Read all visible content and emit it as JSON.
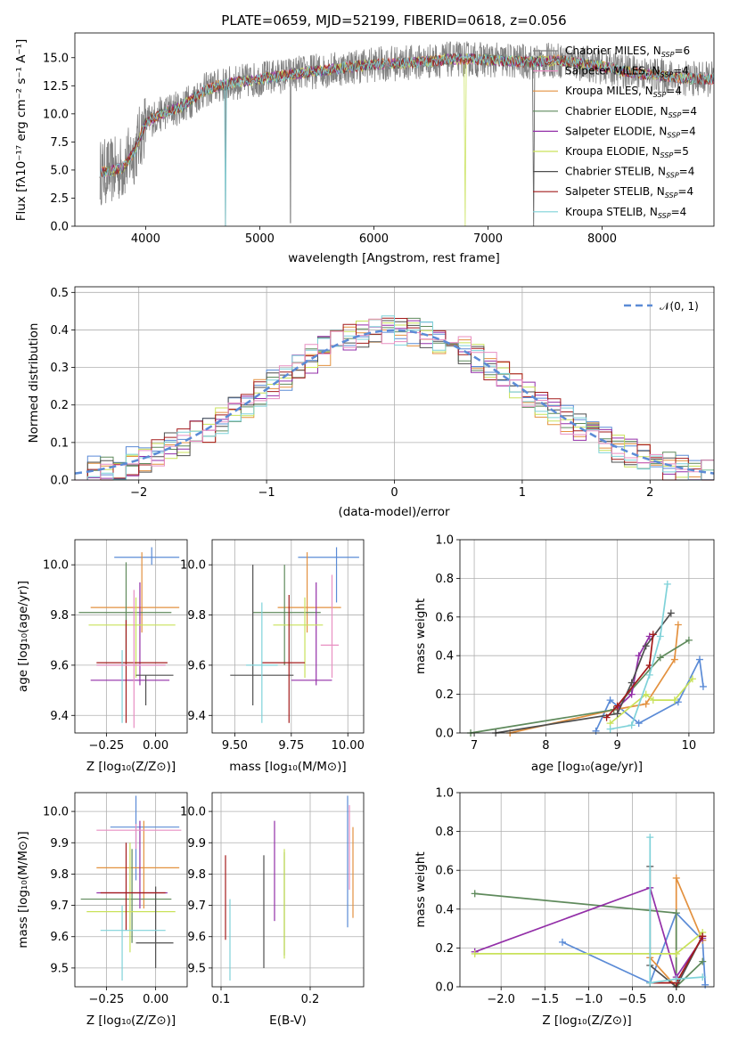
{
  "colors": [
    "#5b8bd6",
    "#e3913f",
    "#5f8a5c",
    "#932fa8",
    "#c9e25a",
    "#4f4f4f",
    "#a31b1b",
    "#7fd2d9",
    "#e88fc2",
    "#7d7d7d"
  ],
  "chart_data": [
    {
      "type": "line",
      "title": "PLATE=0659, MJD=52199, FIBERID=0618, z=0.056",
      "xlabel": "wavelength [Angstrom, rest frame]",
      "ylabel": "Flux [fλ10⁻¹⁷ erg cm⁻² s⁻¹ A⁻¹]",
      "xlim": [
        3380,
        8980
      ],
      "ylim": [
        0,
        17.2
      ],
      "xticks": [
        "4000",
        "5000",
        "6000",
        "7000",
        "8000"
      ],
      "yticks": [
        "0.0",
        "2.5",
        "5.0",
        "7.5",
        "10.0",
        "12.5",
        "15.0"
      ],
      "legend_position": "upper right",
      "continuum": {
        "x": [
          3600,
          3700,
          3800,
          3900,
          4000,
          4100,
          4200,
          4300,
          4400,
          4500,
          4600,
          4800,
          5000,
          5200,
          5400,
          5600,
          5800,
          6000,
          6200,
          6400,
          6600,
          6800,
          7000,
          7200,
          7400,
          7600,
          7800,
          8000,
          8200,
          8400,
          8600,
          8800
        ],
        "y": [
          4.8,
          4.9,
          5.2,
          6.6,
          9.2,
          9.8,
          10.3,
          10.6,
          11.2,
          12.0,
          12.4,
          12.8,
          13.1,
          13.4,
          13.7,
          13.9,
          14.2,
          14.4,
          14.5,
          14.6,
          14.8,
          14.9,
          14.8,
          14.7,
          14.6,
          14.8,
          14.5,
          14.2,
          13.8,
          13.5,
          13.3,
          13.1
        ]
      },
      "series": [
        {
          "name": "Chabrier MILES, N_SSP=6"
        },
        {
          "name": "Salpeter MILES, N_SSP=4"
        },
        {
          "name": "Kroupa MILES, N_SSP=4"
        },
        {
          "name": "Chabrier ELODIE, N_SSP=4"
        },
        {
          "name": "Salpeter ELODIE, N_SSP=4"
        },
        {
          "name": "Kroupa ELODIE, N_SSP=5"
        },
        {
          "name": "Chabrier STELIB, N_SSP=4"
        },
        {
          "name": "Salpeter STELIB, N_SSP=4"
        },
        {
          "name": "Kroupa STELIB, N_SSP=4"
        }
      ],
      "legend_labels": [
        "Chabrier MILES, N",
        "Salpeter MILES, N",
        "Kroupa MILES, N",
        "Chabrier ELODIE, N",
        "Salpeter ELODIE, N",
        "Kroupa ELODIE, N",
        "Chabrier STELIB, N",
        "Salpeter STELIB, N",
        "Kroupa STELIB, N"
      ],
      "legend_sub": "SSP",
      "legend_counts": [
        "=6",
        "=4",
        "=4",
        "=4",
        "=4",
        "=5",
        "=4",
        "=4",
        "=4"
      ]
    },
    {
      "type": "bar",
      "xlabel": "(data-model)/error",
      "ylabel": "Normed distribution",
      "xlim": [
        -2.5,
        2.5
      ],
      "ylim": [
        0,
        0.515
      ],
      "xticks": [
        "−2",
        "−1",
        "0",
        "1",
        "2"
      ],
      "yticks": [
        "0.0",
        "0.1",
        "0.2",
        "0.3",
        "0.4",
        "0.5"
      ],
      "legend_label": "𝒩(0, 1)",
      "legend_position": "upper right",
      "bin_edges": [
        -2.5,
        -2.4,
        -2.3,
        -2.2,
        -2.1,
        -2.0,
        -1.9,
        -1.8,
        -1.7,
        -1.6,
        -1.5,
        -1.4,
        -1.3,
        -1.2,
        -1.1,
        -1.0,
        -0.9,
        -0.8,
        -0.7,
        -0.6,
        -0.5,
        -0.4,
        -0.3,
        -0.2,
        -0.1,
        0.0,
        0.1,
        0.2,
        0.3,
        0.4,
        0.5,
        0.6,
        0.7,
        0.8,
        0.9,
        1.0,
        1.1,
        1.2,
        1.3,
        1.4,
        1.5,
        1.6,
        1.7,
        1.8,
        1.9,
        2.0,
        2.1,
        2.2,
        2.3,
        2.4,
        2.5
      ]
    },
    {
      "type": "scatter",
      "xlabel": "Z [log₁₀(Z/Z⊙)]",
      "ylabel": "age  [log₁₀(age/yr)]",
      "xlim": [
        -0.41,
        0.16
      ],
      "ylim": [
        9.33,
        10.1
      ],
      "xticks": [
        {
          "v": -0.25,
          "t": "−0.25"
        },
        {
          "v": 0.0,
          "t": "0.00"
        }
      ],
      "yticks": [
        {
          "v": 9.4,
          "t": "9.4"
        },
        {
          "v": 9.6,
          "t": "9.6"
        },
        {
          "v": 9.8,
          "t": "9.8"
        },
        {
          "v": 10.0,
          "t": "10.0"
        }
      ],
      "points": [
        {
          "x": -0.02,
          "y": 10.03,
          "xe": [
            -0.21,
            0.12
          ],
          "ye": [
            10.0,
            10.07
          ]
        },
        {
          "x": -0.07,
          "y": 9.83,
          "xe": [
            -0.33,
            0.12
          ],
          "ye": [
            9.73,
            10.05
          ]
        },
        {
          "x": -0.15,
          "y": 9.81,
          "xe": [
            -0.39,
            0.08
          ],
          "ye": [
            9.6,
            10.01
          ]
        },
        {
          "x": -0.08,
          "y": 9.54,
          "xe": [
            -0.33,
            0.07
          ],
          "ye": [
            9.52,
            9.93
          ]
        },
        {
          "x": -0.1,
          "y": 9.76,
          "xe": [
            -0.34,
            0.1
          ],
          "ye": [
            9.55,
            9.87
          ]
        },
        {
          "x": -0.05,
          "y": 9.56,
          "xe": [
            -0.1,
            0.09
          ],
          "ye": [
            9.44,
            9.56
          ]
        },
        {
          "x": -0.15,
          "y": 9.61,
          "xe": [
            -0.3,
            0.06
          ],
          "ye": [
            9.37,
            9.78
          ]
        },
        {
          "x": -0.17,
          "y": 9.6,
          "xe": [
            -0.3,
            0.05
          ],
          "ye": [
            9.37,
            9.66
          ]
        },
        {
          "x": -0.11,
          "y": 9.6,
          "xe": [
            -0.3,
            0.05
          ],
          "ye": [
            9.35,
            9.9
          ]
        }
      ]
    },
    {
      "type": "scatter",
      "xlabel": "mass [log₁₀(M/M⊙)]",
      "xlim": [
        9.4,
        10.07
      ],
      "ylim": [
        9.33,
        10.1
      ],
      "xticks": [
        {
          "v": 9.5,
          "t": "9.50"
        },
        {
          "v": 9.75,
          "t": "9.75"
        },
        {
          "v": 10.0,
          "t": "10.00"
        }
      ],
      "yticks": [
        {
          "v": 9.4,
          "t": "9.4"
        },
        {
          "v": 9.6,
          "t": "9.6"
        },
        {
          "v": 9.8,
          "t": "9.8"
        },
        {
          "v": 10.0,
          "t": "10.0"
        }
      ],
      "points": [
        {
          "x": 9.95,
          "y": 10.03,
          "xe": [
            9.78,
            10.05
          ],
          "ye": [
            9.85,
            10.07
          ]
        },
        {
          "x": 9.82,
          "y": 9.83,
          "xe": [
            9.69,
            9.97
          ],
          "ye": [
            9.73,
            10.05
          ]
        },
        {
          "x": 9.72,
          "y": 9.81,
          "xe": [
            9.58,
            9.88
          ],
          "ye": [
            9.6,
            10.0
          ]
        },
        {
          "x": 9.86,
          "y": 9.54,
          "xe": [
            9.75,
            9.93
          ],
          "ye": [
            9.52,
            9.93
          ]
        },
        {
          "x": 9.81,
          "y": 9.76,
          "xe": [
            9.67,
            9.89
          ],
          "ye": [
            9.55,
            9.87
          ]
        },
        {
          "x": 9.58,
          "y": 9.56,
          "xe": [
            9.48,
            9.76
          ],
          "ye": [
            9.44,
            10.0
          ]
        },
        {
          "x": 9.74,
          "y": 9.61,
          "xe": [
            9.62,
            9.81
          ],
          "ye": [
            9.37,
            9.88
          ]
        },
        {
          "x": 9.62,
          "y": 9.6,
          "xe": [
            9.55,
            9.69
          ],
          "ye": [
            9.37,
            9.85
          ]
        },
        {
          "x": 9.93,
          "y": 9.68,
          "xe": [
            9.88,
            9.96
          ],
          "ye": [
            9.55,
            9.96
          ]
        }
      ]
    },
    {
      "type": "line",
      "xlabel": "age  [log₁₀(age/yr)]",
      "ylabel": "mass weight",
      "xlim": [
        6.8,
        10.35
      ],
      "ylim": [
        0,
        1.0
      ],
      "xticks": [
        {
          "v": 7,
          "t": "7"
        },
        {
          "v": 8,
          "t": "8"
        },
        {
          "v": 9,
          "t": "9"
        },
        {
          "v": 10,
          "t": "10"
        }
      ],
      "yticks": [
        {
          "v": 0,
          "t": "0.0"
        },
        {
          "v": 0.2,
          "t": "0.2"
        },
        {
          "v": 0.4,
          "t": "0.4"
        },
        {
          "v": 0.6,
          "t": "0.6"
        },
        {
          "v": 0.8,
          "t": "0.8"
        },
        {
          "v": 1.0,
          "t": "1.0"
        }
      ],
      "series": [
        {
          "x": [
            8.7,
            8.9,
            9.3,
            9.85,
            10.15,
            10.2
          ],
          "y": [
            0.01,
            0.17,
            0.05,
            0.16,
            0.38,
            0.24
          ]
        },
        {
          "x": [
            7.5,
            8.95,
            9.4,
            9.8,
            9.85
          ],
          "y": [
            0.0,
            0.12,
            0.15,
            0.38,
            0.56
          ]
        },
        {
          "x": [
            6.95,
            8.95,
            9.6,
            10.0
          ],
          "y": [
            0.0,
            0.12,
            0.39,
            0.48
          ]
        },
        {
          "x": [
            9.0,
            9.2,
            9.3,
            9.45
          ],
          "y": [
            0.13,
            0.2,
            0.4,
            0.5
          ]
        },
        {
          "x": [
            8.9,
            9.4,
            9.5,
            9.8,
            10.05
          ],
          "y": [
            0.05,
            0.2,
            0.17,
            0.17,
            0.28
          ]
        },
        {
          "x": [
            7.3,
            9.0,
            9.2,
            9.4,
            9.75
          ],
          "y": [
            0.0,
            0.1,
            0.26,
            0.45,
            0.62
          ]
        },
        {
          "x": [
            8.85,
            9.0,
            9.45,
            9.5
          ],
          "y": [
            0.08,
            0.14,
            0.35,
            0.51
          ]
        },
        {
          "x": [
            8.9,
            9.2,
            9.45,
            9.6,
            9.7
          ],
          "y": [
            0.02,
            0.04,
            0.3,
            0.5,
            0.77
          ]
        }
      ]
    },
    {
      "type": "scatter",
      "xlabel": "Z [log₁₀(Z/Z⊙)]",
      "ylabel": "mass [log₁₀(M/M⊙)]",
      "xlim": [
        -0.41,
        0.16
      ],
      "ylim": [
        9.44,
        10.06
      ],
      "xticks": [
        {
          "v": -0.25,
          "t": "−0.25"
        },
        {
          "v": 0.0,
          "t": "0.00"
        }
      ],
      "yticks": [
        {
          "v": 9.5,
          "t": "9.5"
        },
        {
          "v": 9.6,
          "t": "9.6"
        },
        {
          "v": 9.7,
          "t": "9.7"
        },
        {
          "v": 9.8,
          "t": "9.8"
        },
        {
          "v": 9.9,
          "t": "9.9"
        },
        {
          "v": 10.0,
          "t": "10.0"
        }
      ],
      "points": [
        {
          "x": -0.1,
          "y": 9.95,
          "xe": [
            -0.23,
            0.12
          ],
          "ye": [
            9.78,
            10.05
          ]
        },
        {
          "x": -0.06,
          "y": 9.82,
          "xe": [
            -0.3,
            0.12
          ],
          "ye": [
            9.69,
            9.97
          ]
        },
        {
          "x": -0.12,
          "y": 9.72,
          "xe": [
            -0.38,
            0.08
          ],
          "ye": [
            9.58,
            9.88
          ]
        },
        {
          "x": -0.08,
          "y": 9.74,
          "xe": [
            -0.3,
            0.06
          ],
          "ye": [
            9.69,
            9.97
          ]
        },
        {
          "x": -0.13,
          "y": 9.68,
          "xe": [
            -0.35,
            0.1
          ],
          "ye": [
            9.55,
            9.9
          ]
        },
        {
          "x": 0.0,
          "y": 9.58,
          "xe": [
            -0.1,
            0.09
          ],
          "ye": [
            9.5,
            9.76
          ]
        },
        {
          "x": -0.15,
          "y": 9.74,
          "xe": [
            -0.28,
            0.05
          ],
          "ye": [
            9.62,
            9.9
          ]
        },
        {
          "x": -0.17,
          "y": 9.62,
          "xe": [
            -0.28,
            0.05
          ],
          "ye": [
            9.46,
            9.7
          ]
        },
        {
          "x": -0.1,
          "y": 9.94,
          "xe": [
            -0.3,
            0.13
          ],
          "ye": [
            9.88,
            9.96
          ]
        }
      ]
    },
    {
      "type": "scatter",
      "xlabel": "E(B-V)",
      "xlim": [
        0.09,
        0.26
      ],
      "ylim": [
        9.44,
        10.06
      ],
      "xticks": [
        {
          "v": 0.1,
          "t": "0.1"
        },
        {
          "v": 0.2,
          "t": "0.2"
        }
      ],
      "yticks": [
        {
          "v": 9.5,
          "t": "9.5"
        },
        {
          "v": 9.6,
          "t": "9.6"
        },
        {
          "v": 9.7,
          "t": "9.7"
        },
        {
          "v": 9.8,
          "t": "9.8"
        },
        {
          "v": 9.9,
          "t": "9.9"
        },
        {
          "v": 10.0,
          "t": "10.0"
        }
      ],
      "points": [
        {
          "x": 0.242,
          "y": 9.95,
          "ye": [
            9.63,
            10.05
          ]
        },
        {
          "x": 0.248,
          "y": 9.82,
          "ye": [
            9.66,
            9.95
          ]
        },
        {
          "x": 0.171,
          "y": 9.76,
          "ye": [
            9.54,
            9.87
          ]
        },
        {
          "x": 0.16,
          "y": 9.82,
          "ye": [
            9.65,
            9.97
          ]
        },
        {
          "x": 0.171,
          "y": 9.7,
          "ye": [
            9.53,
            9.88
          ]
        },
        {
          "x": 0.148,
          "y": 9.68,
          "ye": [
            9.5,
            9.86
          ]
        },
        {
          "x": 0.105,
          "y": 9.75,
          "ye": [
            9.59,
            9.86
          ]
        },
        {
          "x": 0.11,
          "y": 9.58,
          "ye": [
            9.46,
            9.72
          ]
        },
        {
          "x": 0.244,
          "y": 9.85,
          "ye": [
            9.75,
            10.02
          ]
        }
      ]
    },
    {
      "type": "line",
      "xlabel": "Z [log₁₀(Z/Z⊙)]",
      "ylabel": "mass weight",
      "xlim": [
        -2.47,
        0.43
      ],
      "ylim": [
        0,
        1.0
      ],
      "xticks": [
        {
          "v": -2.0,
          "t": "−2.0"
        },
        {
          "v": -1.5,
          "t": "−1.5"
        },
        {
          "v": -1.0,
          "t": "−1.0"
        },
        {
          "v": -0.5,
          "t": "−0.5"
        },
        {
          "v": 0.0,
          "t": "0.0"
        }
      ],
      "yticks": [
        {
          "v": 0,
          "t": "0.0"
        },
        {
          "v": 0.2,
          "t": "0.2"
        },
        {
          "v": 0.4,
          "t": "0.4"
        },
        {
          "v": 0.6,
          "t": "0.6"
        },
        {
          "v": 0.8,
          "t": "0.8"
        },
        {
          "v": 1.0,
          "t": "1.0"
        }
      ],
      "series": [
        {
          "x": [
            -1.3,
            -0.3,
            0.0,
            0.3,
            0.33
          ],
          "y": [
            0.23,
            0.02,
            0.38,
            0.24,
            0.01
          ]
        },
        {
          "x": [
            -0.3,
            0.0,
            0.0,
            0.3
          ],
          "y": [
            0.15,
            0.0,
            0.56,
            0.24
          ]
        },
        {
          "x": [
            -2.3,
            0.0,
            0.0,
            0.3
          ],
          "y": [
            0.48,
            0.38,
            0.0,
            0.13
          ]
        },
        {
          "x": [
            -2.3,
            -0.3,
            0.0,
            0.3
          ],
          "y": [
            0.18,
            0.51,
            0.05,
            0.25
          ]
        },
        {
          "x": [
            -2.3,
            0.0,
            0.3
          ],
          "y": [
            0.17,
            0.17,
            0.28
          ]
        },
        {
          "x": [
            -0.3,
            -0.3,
            0.0,
            0.3
          ],
          "y": [
            0.62,
            0.11,
            0.0,
            0.26
          ]
        },
        {
          "x": [
            -0.3,
            0.0,
            0.3
          ],
          "y": [
            0.02,
            0.02,
            0.26
          ]
        },
        {
          "x": [
            -0.3,
            -0.3,
            0.0,
            0.3
          ],
          "y": [
            0.77,
            0.02,
            0.04,
            0.05
          ]
        }
      ]
    }
  ]
}
